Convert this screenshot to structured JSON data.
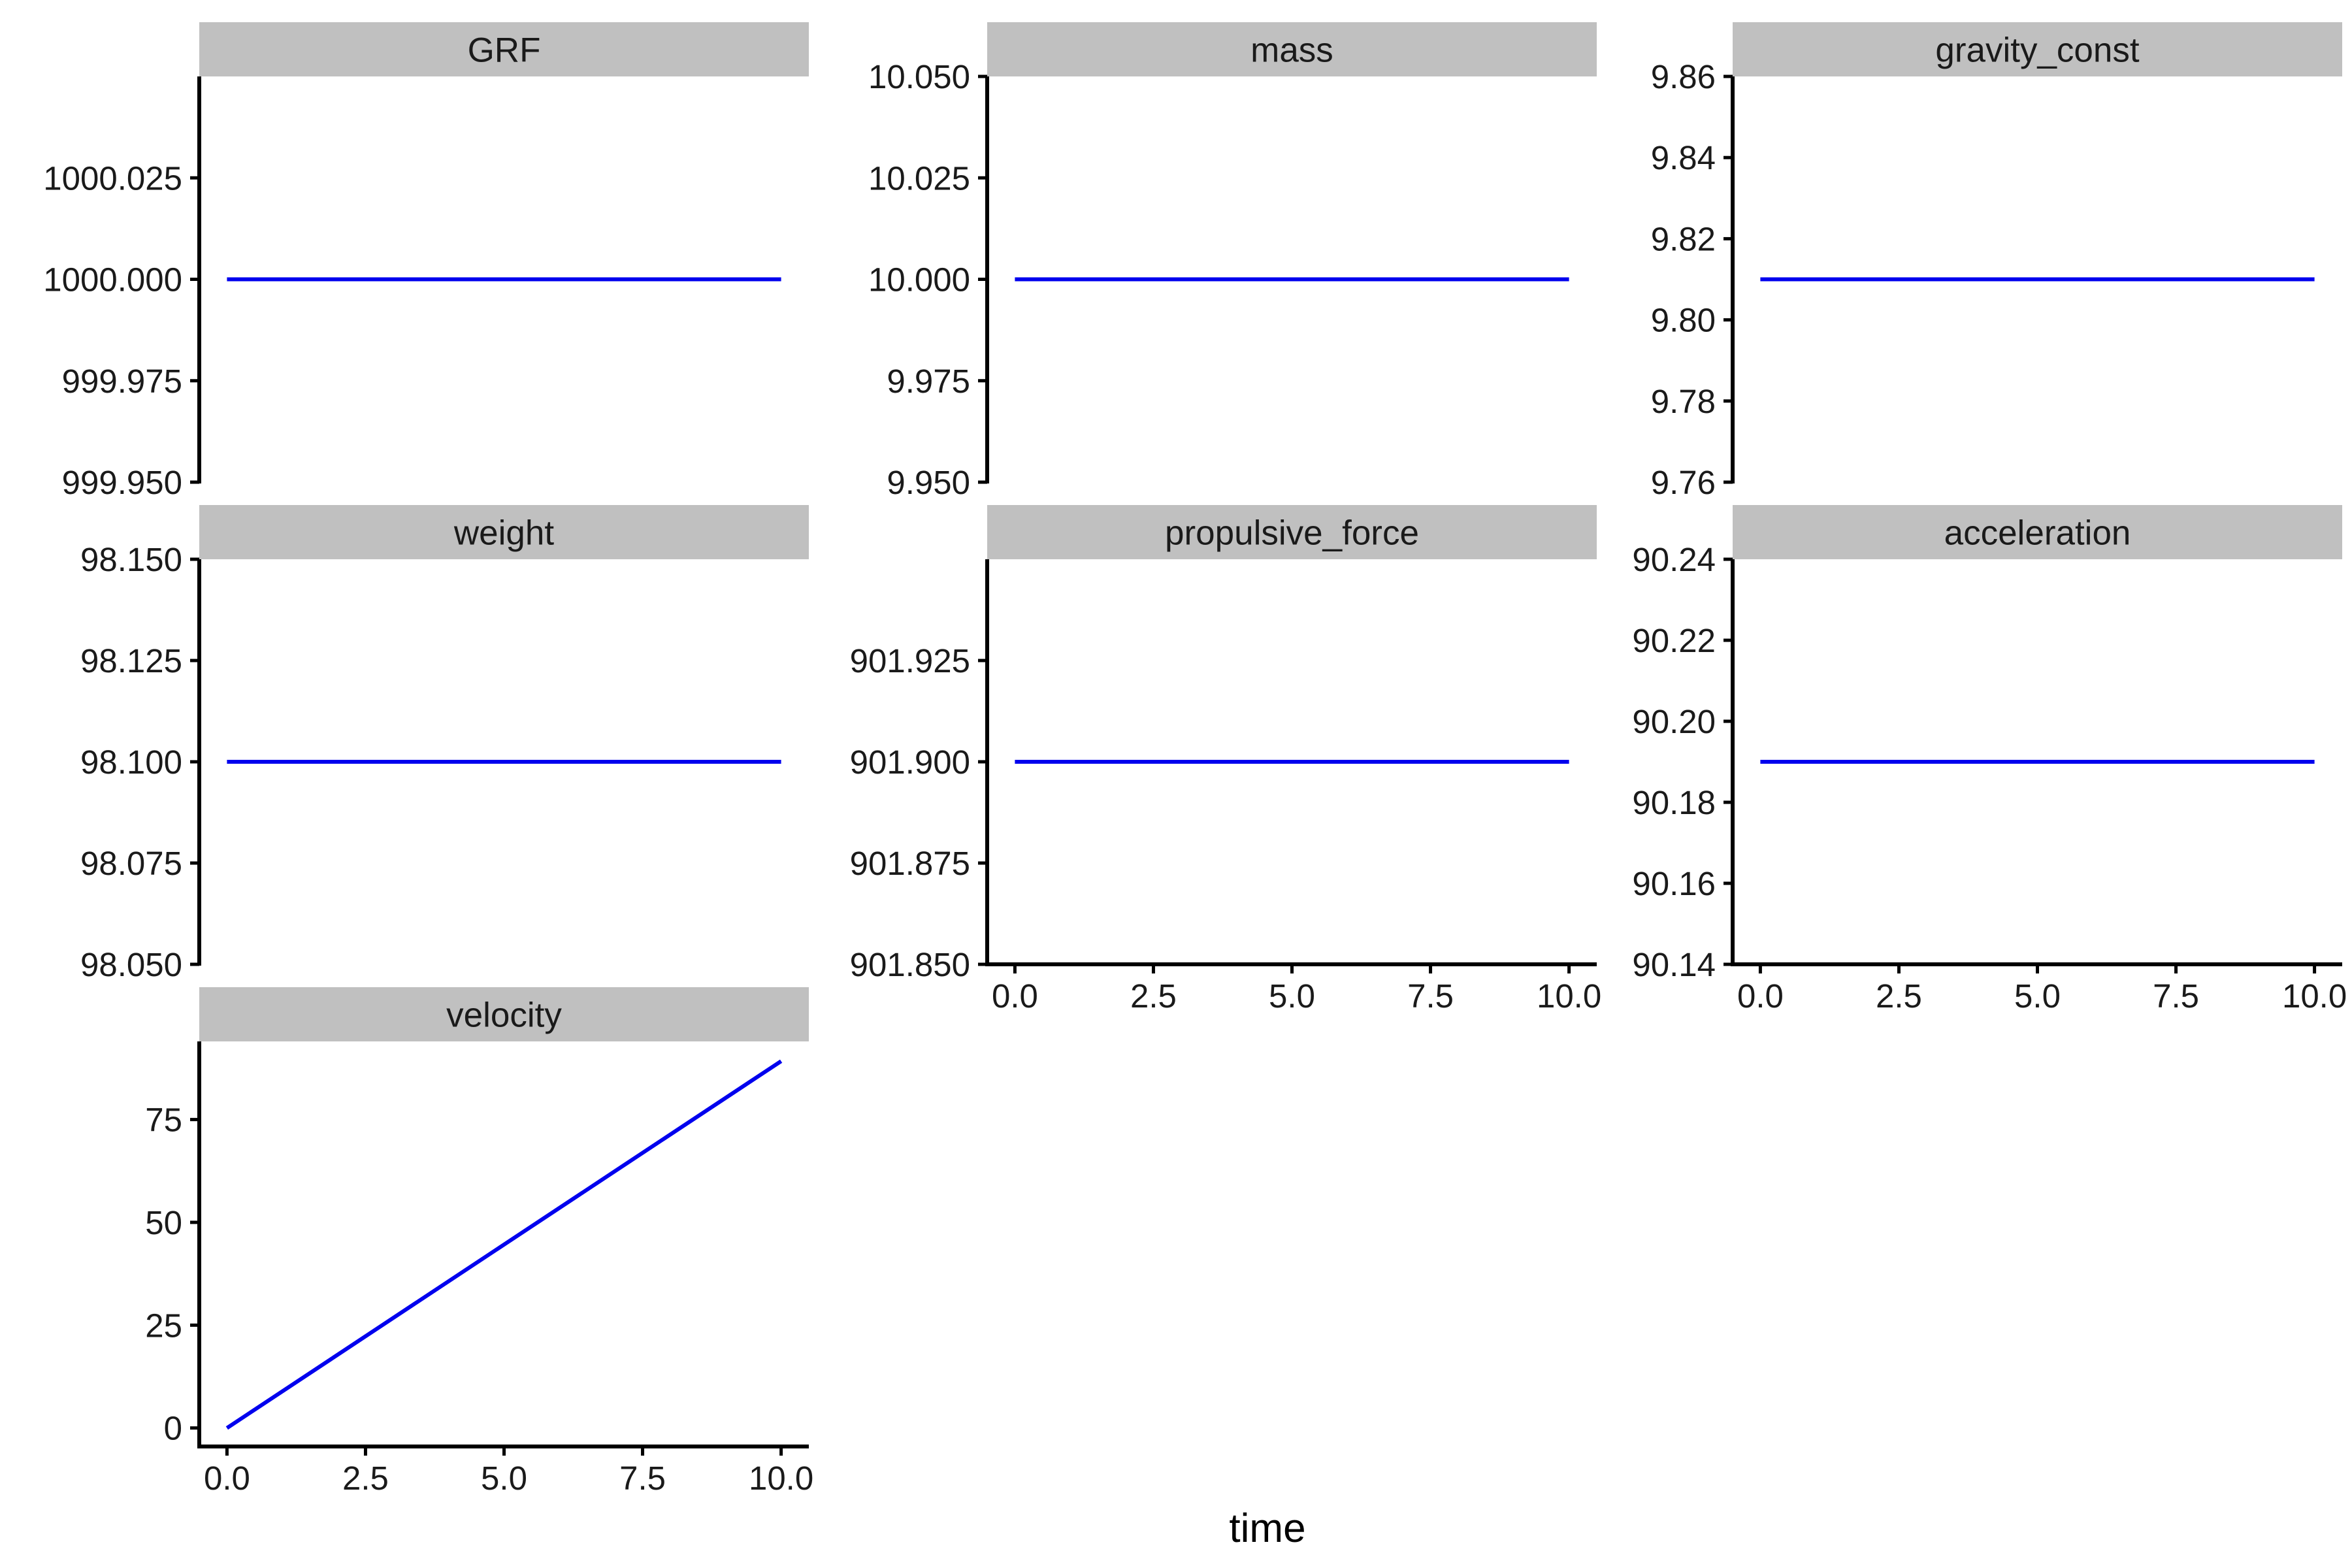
{
  "chart_data": {
    "type": "line",
    "layout": "facet_wrap",
    "xlabel": "time",
    "ylabel": "",
    "series_color": "#0000ee",
    "strip_color": "#c0c0c0",
    "x_ticks": [
      0,
      2.5,
      5,
      7.5,
      10
    ],
    "x_tick_labels": [
      "0.0",
      "2.5",
      "5.0",
      "7.5",
      "10.0"
    ],
    "xlim": [
      -0.5,
      10.5
    ],
    "facets": [
      {
        "name": "GRF",
        "x": [
          0,
          10
        ],
        "y": [
          1000,
          1000
        ],
        "ylim": [
          999.95,
          1000.05
        ],
        "y_ticks": [
          999.95,
          999.975,
          1000,
          1000.025
        ],
        "y_tick_labels": [
          "999.950",
          "999.975",
          "1000.000",
          "1000.025"
        ]
      },
      {
        "name": "mass",
        "x": [
          0,
          10
        ],
        "y": [
          10,
          10
        ],
        "ylim": [
          9.95,
          10.05
        ],
        "y_ticks": [
          9.95,
          9.975,
          10,
          10.025,
          10.05
        ],
        "y_tick_labels": [
          "9.950",
          "9.975",
          "10.000",
          "10.025",
          "10.050"
        ]
      },
      {
        "name": "gravity_const",
        "x": [
          0,
          10
        ],
        "y": [
          9.81,
          9.81
        ],
        "ylim": [
          9.76,
          9.86
        ],
        "y_ticks": [
          9.76,
          9.78,
          9.8,
          9.82,
          9.84,
          9.86
        ],
        "y_tick_labels": [
          "9.76",
          "9.78",
          "9.80",
          "9.82",
          "9.84",
          "9.86"
        ]
      },
      {
        "name": "weight",
        "x": [
          0,
          10
        ],
        "y": [
          98.1,
          98.1
        ],
        "ylim": [
          98.05,
          98.15
        ],
        "y_ticks": [
          98.05,
          98.075,
          98.1,
          98.125,
          98.15
        ],
        "y_tick_labels": [
          "98.050",
          "98.075",
          "98.100",
          "98.125",
          "98.150"
        ]
      },
      {
        "name": "propulsive_force",
        "x": [
          0,
          10
        ],
        "y": [
          901.9,
          901.9
        ],
        "ylim": [
          901.85,
          901.95
        ],
        "y_ticks": [
          901.85,
          901.875,
          901.9,
          901.925
        ],
        "y_tick_labels": [
          "901.850",
          "901.875",
          "901.900",
          "901.925"
        ]
      },
      {
        "name": "acceleration",
        "x": [
          0,
          10
        ],
        "y": [
          90.19,
          90.19
        ],
        "ylim": [
          90.14,
          90.24
        ],
        "y_ticks": [
          90.14,
          90.16,
          90.18,
          90.2,
          90.22,
          90.24
        ],
        "y_tick_labels": [
          "90.14",
          "90.16",
          "90.18",
          "90.20",
          "90.22",
          "90.24"
        ]
      },
      {
        "name": "velocity",
        "x": [
          0,
          10
        ],
        "y": [
          0,
          89.2
        ],
        "ylim": [
          -4.5,
          94
        ],
        "y_ticks": [
          0,
          25,
          50,
          75
        ],
        "y_tick_labels": [
          "0",
          "25",
          "50",
          "75"
        ]
      }
    ],
    "x_axis_shown_on": [
      "propulsive_force",
      "acceleration",
      "velocity"
    ]
  }
}
